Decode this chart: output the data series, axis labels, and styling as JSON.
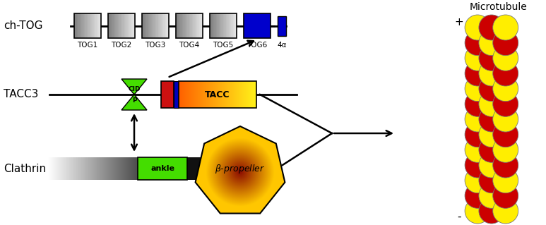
{
  "bg_color": "#ffffff",
  "ch_tog_label": "ch-TOG",
  "tacc3_label": "TACC3",
  "clathrin_label": "Clathrin",
  "microtubule_label": "Microtubule",
  "tog_labels": [
    "TOG1",
    "TOG2",
    "TOG3",
    "TOG4",
    "TOG5",
    "TOG6",
    "4α"
  ],
  "tog6_color": "#0000cc",
  "ankle_color": "#44dd00",
  "cid_color": "#44dd00",
  "mt_yellow": "#ffee00",
  "mt_red": "#cc0000",
  "prop_inner": [
    0.55,
    0.05,
    0.0
  ],
  "prop_outer": [
    1.0,
    0.78,
    0.0
  ]
}
